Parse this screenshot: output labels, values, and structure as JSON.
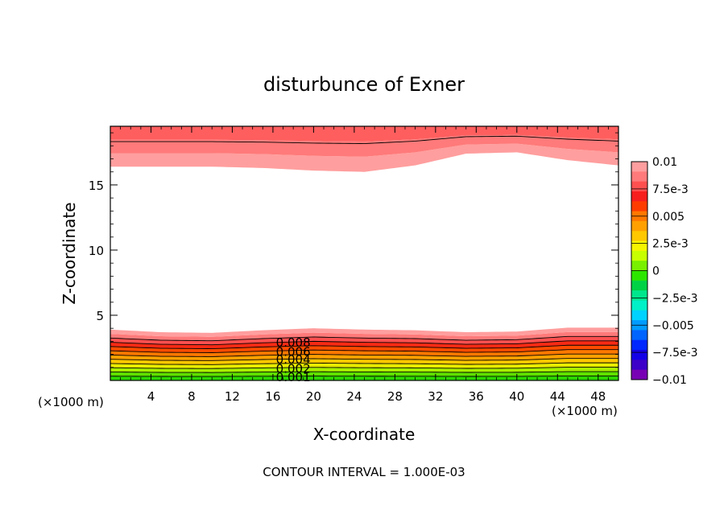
{
  "chart_data": {
    "type": "contour",
    "title": "disturbunce of Exner",
    "xlabel": "X-coordinate",
    "ylabel": "Z-coordinate",
    "x_unit_left": "(×1000 m)",
    "x_unit_right": "(×1000 m)",
    "footer": "CONTOUR INTERVAL = 1.000E-03",
    "xlim": [
      0,
      50
    ],
    "ylim": [
      0,
      19.5
    ],
    "x_ticks": [
      4,
      8,
      12,
      16,
      20,
      24,
      28,
      32,
      36,
      40,
      44,
      48
    ],
    "x_tick_labels": [
      "4",
      "8",
      "12",
      "16",
      "20",
      "24",
      "28",
      "32",
      "36",
      "40",
      "44",
      "48"
    ],
    "y_ticks": [
      5,
      10,
      15
    ],
    "y_tick_labels": [
      "5",
      "10",
      "15"
    ],
    "contour_interval": 0.001,
    "contour_labels": [
      {
        "text": "0.008",
        "x": 18,
        "z": 2.9
      },
      {
        "text": "0.006",
        "x": 18,
        "z": 2.2
      },
      {
        "text": "0.004",
        "x": 18,
        "z": 1.6
      },
      {
        "text": "0.002",
        "x": 18,
        "z": 0.9
      },
      {
        "text": "0.001",
        "x": 18,
        "z": 0.25
      }
    ],
    "lower_layer": {
      "x": [
        0,
        5,
        10,
        15,
        20,
        25,
        30,
        35,
        40,
        45,
        50
      ],
      "top_z": [
        3.9,
        3.7,
        3.65,
        3.85,
        4.0,
        3.9,
        3.85,
        3.7,
        3.75,
        4.05,
        4.05
      ],
      "bottom_z": 0.0
    },
    "upper_layer": {
      "x": [
        0,
        5,
        10,
        15,
        20,
        25,
        30,
        35,
        40,
        45,
        50
      ],
      "base_z": [
        16.4,
        16.4,
        16.4,
        16.3,
        16.1,
        16.0,
        16.5,
        17.4,
        17.5,
        16.9,
        16.5
      ],
      "top_z": 19.5
    },
    "colorbar": {
      "labels": [
        "0.01",
        "7.5e-3",
        "0.005",
        "2.5e-3",
        "0",
        "−2.5e-3",
        "−0.005",
        "−7.5e-3",
        "−0.01"
      ],
      "colors": [
        "#ff9e9e",
        "#ff7a7a",
        "#ff5050",
        "#f71e1e",
        "#ff3c00",
        "#ff7800",
        "#ffa000",
        "#ffc800",
        "#f5f500",
        "#c8ff00",
        "#78f000",
        "#2de600",
        "#00d246",
        "#00e68c",
        "#00f0c8",
        "#00d2ff",
        "#009bff",
        "#0064ff",
        "#0028ff",
        "#1400e6",
        "#3c00c8",
        "#7800b4"
      ]
    }
  }
}
